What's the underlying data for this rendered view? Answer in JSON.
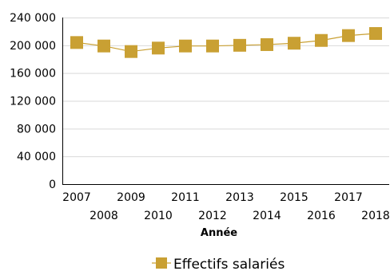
{
  "chart_data": {
    "type": "line",
    "x": [
      "2007",
      "2008",
      "2009",
      "2010",
      "2011",
      "2012",
      "2013",
      "2014",
      "2015",
      "2016",
      "2017",
      "2018"
    ],
    "series": [
      {
        "name": "Effectifs salariés",
        "values": [
          204000,
          199000,
          191000,
          196000,
          199000,
          199000,
          200000,
          201000,
          203000,
          207000,
          214000,
          217000
        ]
      }
    ],
    "xlabel": "Année",
    "ylabel": "",
    "ylim": [
      0,
      240000
    ],
    "yticks": [
      "0",
      "40 000",
      "80 000",
      "120 000",
      "160 000",
      "200 000",
      "240 000"
    ],
    "ytick_values": [
      0,
      40000,
      80000,
      120000,
      160000,
      200000,
      240000
    ],
    "grid": true,
    "legend_position": "bottom-center",
    "colors": {
      "series": "#C9A033",
      "grid": "#D9D9D9",
      "axis": "#000000"
    }
  }
}
